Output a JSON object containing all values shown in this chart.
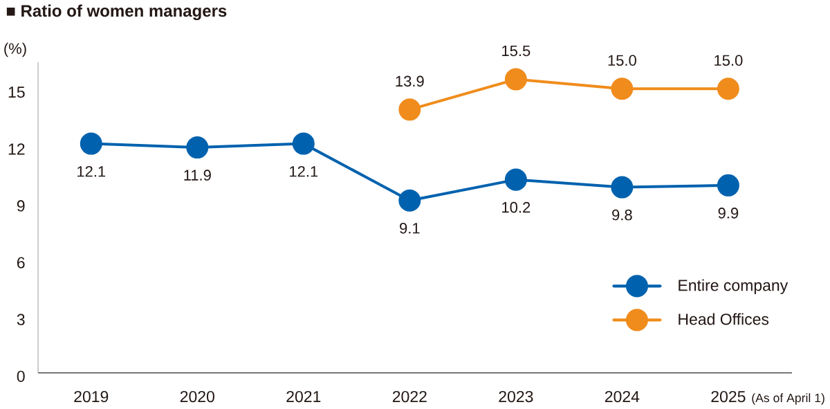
{
  "chart_data": {
    "type": "line",
    "title": "■ Ratio of women managers",
    "ylabel": "(%)",
    "categories": [
      "2019",
      "2020",
      "2021",
      "2022",
      "2023",
      "2024",
      "2025"
    ],
    "series": [
      {
        "name": "Entire company",
        "color": "#0062ae",
        "values": [
          12.1,
          11.9,
          12.1,
          9.1,
          10.2,
          9.8,
          9.9
        ],
        "value_labels": [
          "12.1",
          "11.9",
          "12.1",
          "9.1",
          "10.2",
          "9.8",
          "9.9"
        ]
      },
      {
        "name": "Head Offices",
        "color": "#f08c1c",
        "values": [
          null,
          null,
          null,
          13.9,
          15.5,
          15.0,
          15.0
        ],
        "value_labels": [
          null,
          null,
          null,
          "13.9",
          "15.5",
          "15.0",
          "15.0"
        ]
      }
    ],
    "ylim": [
      0,
      16.4
    ],
    "yticks": [
      0,
      3,
      6,
      9,
      12,
      15
    ],
    "legend": "bottom right",
    "marker": "circle",
    "line_style": "solid",
    "annotations": [
      "(As of April 1)"
    ]
  }
}
